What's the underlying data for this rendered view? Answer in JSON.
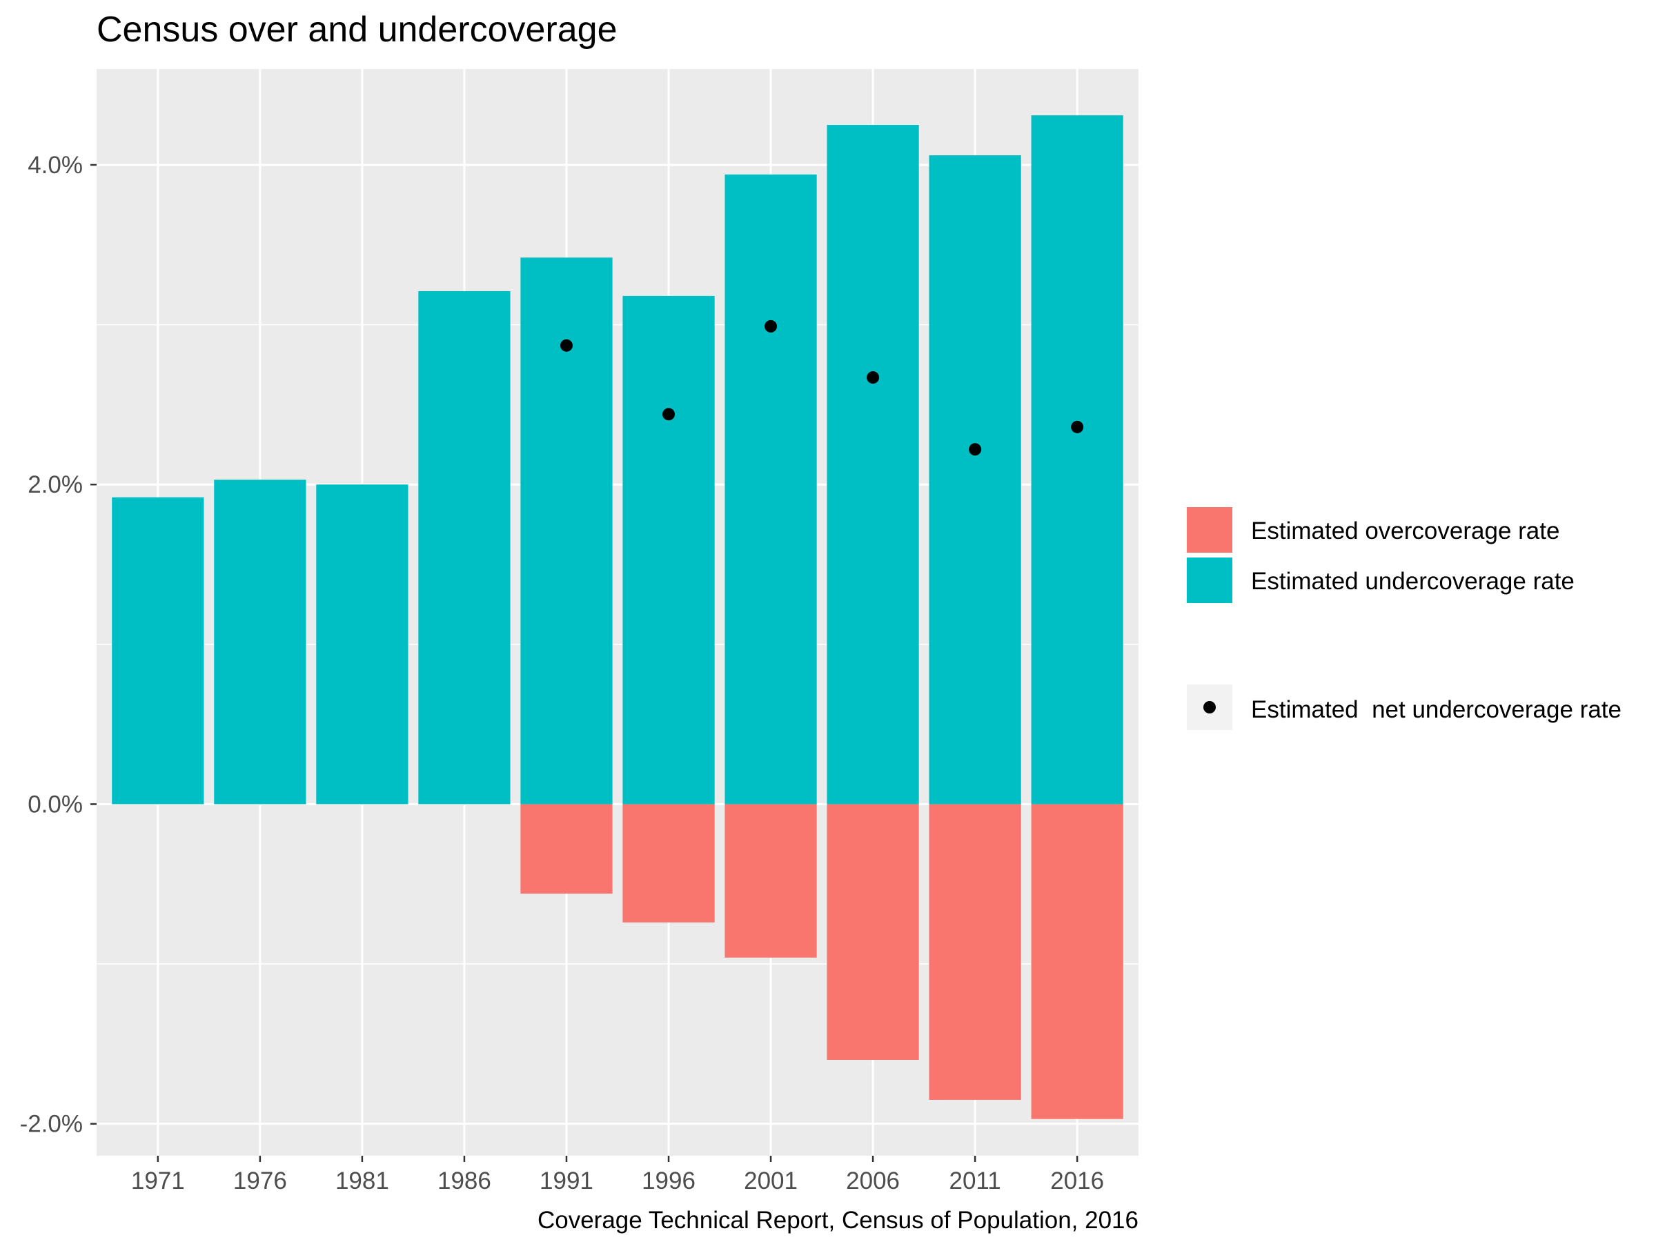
{
  "chart_data": {
    "type": "bar",
    "title": "Census over and undercoverage",
    "caption": "Coverage Technical Report, Census of Population, 2016",
    "xlabel": "",
    "ylabel": "",
    "categories": [
      "1971",
      "1976",
      "1981",
      "1986",
      "1991",
      "1996",
      "2001",
      "2006",
      "2011",
      "2016"
    ],
    "ylim": [
      -2.2,
      4.6
    ],
    "y_ticks": [
      -2.0,
      0.0,
      2.0,
      4.0
    ],
    "y_tick_labels": [
      "-2.0%",
      "0.0%",
      "2.0%",
      "4.0%"
    ],
    "y_unit": "%",
    "grid": true,
    "legend_position": "right",
    "series": [
      {
        "name": "Estimated overcoverage rate",
        "kind": "bar",
        "color": "#F8766D",
        "values": [
          null,
          null,
          null,
          null,
          -0.56,
          -0.74,
          -0.96,
          -1.6,
          -1.85,
          -1.97
        ]
      },
      {
        "name": "Estimated undercoverage rate",
        "kind": "bar",
        "color": "#00BFC4",
        "values": [
          1.92,
          2.03,
          2.0,
          3.21,
          3.42,
          3.18,
          3.94,
          4.25,
          4.06,
          4.31
        ]
      },
      {
        "name": "Estimated  net undercoverage rate",
        "kind": "point",
        "color": "#000000",
        "values": [
          null,
          null,
          null,
          null,
          2.87,
          2.44,
          2.99,
          2.67,
          2.22,
          2.36
        ]
      }
    ],
    "panel_background": "#EBEBEB",
    "grid_color": "#FFFFFF"
  }
}
